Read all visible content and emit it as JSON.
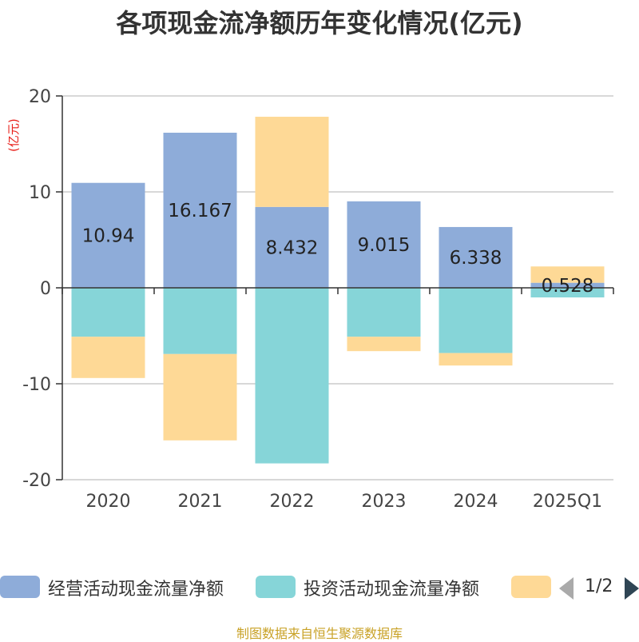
{
  "chart_data": {
    "type": "bar",
    "stacked": true,
    "title": "各项现金流净额历年变化情况(亿元)",
    "ylabel": "(亿元)",
    "ylim": [
      -20,
      20
    ],
    "yticks": [
      20,
      10,
      0,
      -10,
      -20
    ],
    "yticklabels": [
      "20",
      "10",
      "0",
      "-10",
      "-20"
    ],
    "categories": [
      "2020",
      "2021",
      "2022",
      "2023",
      "2024",
      "2025Q1"
    ],
    "series": [
      {
        "name": "经营活动现金流量净额",
        "color": "#8eacd9",
        "values": [
          10.94,
          16.167,
          8.432,
          9.015,
          6.338,
          0.528
        ],
        "data_labels": [
          "10.94",
          "16.167",
          "8.432",
          "9.015",
          "6.338",
          "0.528"
        ]
      },
      {
        "name": "投资活动现金流量净额",
        "color": "#86d5d8",
        "values": [
          -5.1,
          -6.9,
          -18.3,
          -5.1,
          -6.8,
          -1.0
        ]
      },
      {
        "name": "",
        "color": "#fed996",
        "values": [
          -4.3,
          -9.0,
          9.4,
          -1.5,
          -1.3,
          1.7
        ]
      }
    ],
    "legend_position": "bottom"
  },
  "legend": {
    "items": [
      "经营活动现金流量净额",
      "投资活动现金流量净额",
      ""
    ],
    "page": "1/2"
  },
  "source": "制图数据来自恒生聚源数据库"
}
